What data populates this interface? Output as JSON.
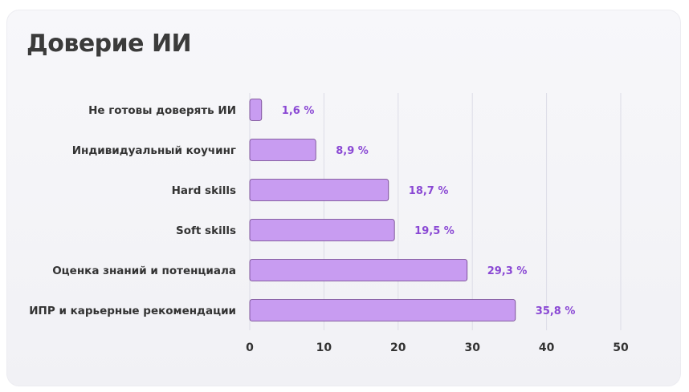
{
  "chart_data": {
    "type": "bar",
    "orientation": "horizontal",
    "title": "Доверие ИИ",
    "categories": [
      "Не готовы доверять ИИ",
      "Индивидуальный коучинг",
      "Hard skills",
      "Soft skills",
      "Оценка знаний и потенциала",
      "ИПР и карьерные рекомендации"
    ],
    "values": [
      1.6,
      8.9,
      18.7,
      19.5,
      29.3,
      35.8
    ],
    "value_labels": [
      "1,6 %",
      "8,9 %",
      "18,7 %",
      "19,5 %",
      "29,3 %",
      "35,8 %"
    ],
    "x_ticks": [
      "0",
      "10",
      "20",
      "30",
      "40",
      "50"
    ],
    "xlim": [
      0,
      50
    ],
    "grid": true,
    "colors": {
      "bar": "#c89cf1",
      "bar_outline": "#6b3f86",
      "value_text": "#8a48d4",
      "grid": "#dcdce6"
    }
  }
}
